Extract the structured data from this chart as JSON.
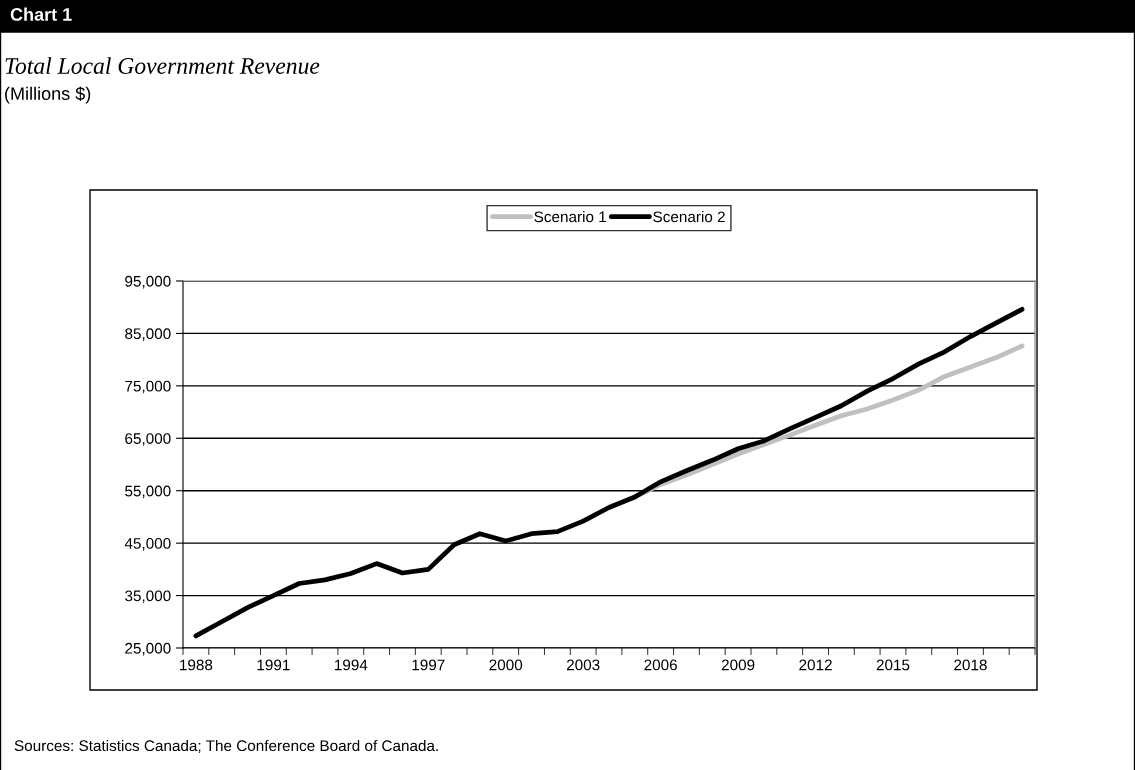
{
  "chart_data": {
    "type": "line",
    "title": "Chart 1",
    "subtitle": "Total Local Government Revenue",
    "categories": [
      "1988",
      null,
      null,
      "1991",
      null,
      null,
      "1994",
      null,
      null,
      "1997",
      null,
      null,
      "2000",
      null,
      null,
      "2003",
      null,
      null,
      "2006",
      null,
      null,
      "2009",
      null,
      null,
      "2012",
      null,
      null,
      "2015",
      null,
      null,
      "2018",
      null,
      null
    ],
    "series": [
      {
        "name": "Scenario 1",
        "color": "#c0c0c0",
        "values": [
          null,
          null,
          null,
          null,
          null,
          null,
          null,
          null,
          null,
          null,
          null,
          null,
          null,
          null,
          null,
          null,
          null,
          53800,
          56200,
          58000,
          60000,
          62000,
          63800,
          65600,
          67500,
          69300,
          70600,
          72300,
          74200,
          76800,
          78600,
          80400,
          82600
        ]
      },
      {
        "name": "Scenario 2",
        "color": "#000000",
        "values": [
          27300,
          30000,
          32700,
          35000,
          37300,
          38000,
          39200,
          41100,
          39300,
          40000,
          44700,
          46800,
          45400,
          46800,
          47200,
          49200,
          51800,
          53800,
          56700,
          58800,
          60800,
          63000,
          64500,
          66800,
          69000,
          71200,
          74000,
          76400,
          79200,
          81500,
          84400,
          87000,
          89600
        ]
      }
    ],
    "ylim": [
      25000,
      95000
    ],
    "yticks": [
      {
        "value": 25000,
        "label": "25,000"
      },
      {
        "value": 35000,
        "label": "35,000"
      },
      {
        "value": 45000,
        "label": "45,000"
      },
      {
        "value": 55000,
        "label": "55,000"
      },
      {
        "value": 65000,
        "label": "65,000"
      },
      {
        "value": 75000,
        "label": "75,000"
      },
      {
        "value": 85000,
        "label": "85,000"
      },
      {
        "value": 95000,
        "label": "95,000"
      }
    ],
    "grid": "y",
    "legend": "top",
    "marker": "none",
    "line_style": "solid",
    "annotations": [
      "(Millions $)",
      "Sources: Statistics Canada; The Conference Board of Canada."
    ]
  }
}
